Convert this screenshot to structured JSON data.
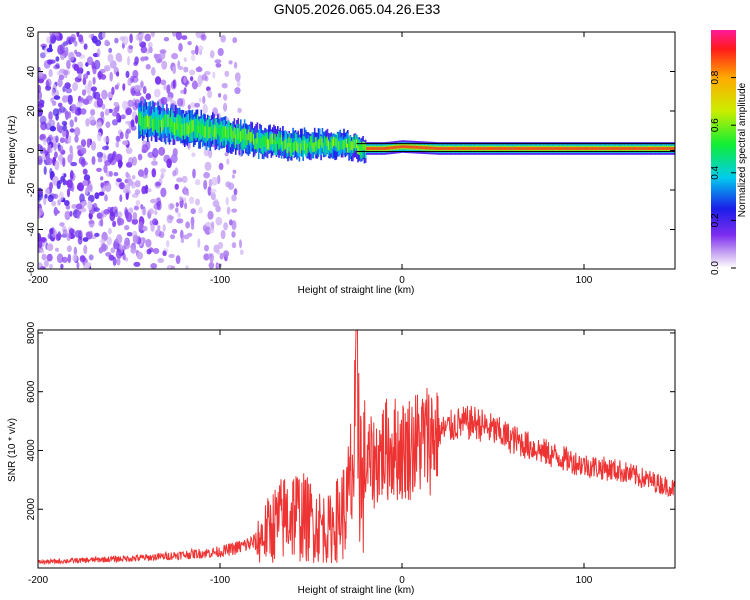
{
  "title": "GN05.2026.065.04.26.E33",
  "chart_data": [
    {
      "type": "heatmap",
      "xlabel": "Height of straight line (km)",
      "ylabel": "Frequency (Hz)",
      "xlim": [
        -200,
        150
      ],
      "ylim": [
        -60,
        60
      ],
      "xticks": [
        "-200",
        "-100",
        "0",
        "100"
      ],
      "xtick_values": [
        -200,
        -100,
        0,
        100
      ],
      "yticks": [
        "60",
        "40",
        "20",
        "0",
        "-20",
        "-40",
        "-60"
      ],
      "ytick_values": [
        60,
        40,
        20,
        0,
        -20,
        -40,
        -60
      ],
      "colorbar": {
        "label": "Normalized spectral amplitude",
        "range": [
          0,
          1
        ],
        "ticks": [
          "0.0",
          "0.2",
          "0.4",
          "0.6",
          "0.8"
        ],
        "tick_values": [
          0.0,
          0.2,
          0.4,
          0.6,
          0.8
        ]
      },
      "ridge": {
        "x": [
          -140,
          -120,
          -100,
          -80,
          -60,
          -40,
          -30,
          -20,
          -10,
          0,
          20,
          40,
          60,
          80,
          100,
          120,
          150
        ],
        "y": [
          15,
          12,
          9,
          5,
          3,
          3,
          3,
          1,
          1,
          2,
          1,
          1,
          1,
          1,
          1,
          1,
          1
        ]
      }
    },
    {
      "type": "line",
      "xlabel": "Height of straight line (km)",
      "ylabel": "SNR (10 * v/v)",
      "xlim": [
        -200,
        150
      ],
      "ylim": [
        0,
        8100
      ],
      "xticks": [
        "-200",
        "-100",
        "0",
        "100"
      ],
      "xtick_values": [
        -200,
        -100,
        0,
        100
      ],
      "yticks": [
        "8000",
        "6000",
        "4000",
        "2000"
      ],
      "ytick_values": [
        8000,
        6000,
        4000,
        2000
      ],
      "line_color": "#ee3333",
      "series": [
        {
          "name": "SNR",
          "x": [
            -200,
            -180,
            -160,
            -140,
            -120,
            -100,
            -90,
            -80,
            -70,
            -60,
            -50,
            -40,
            -35,
            -30,
            -26,
            -24,
            -22,
            -20,
            -15,
            -10,
            -5,
            0,
            10,
            20,
            30,
            40,
            50,
            60,
            80,
            100,
            120,
            150
          ],
          "y": [
            200,
            250,
            300,
            350,
            450,
            550,
            700,
            900,
            1500,
            1900,
            1600,
            1300,
            1700,
            2100,
            3800,
            6300,
            2400,
            3500,
            3600,
            4000,
            4100,
            4000,
            4300,
            4600,
            4900,
            4950,
            4700,
            4400,
            3900,
            3500,
            3300,
            2700
          ]
        }
      ]
    }
  ]
}
